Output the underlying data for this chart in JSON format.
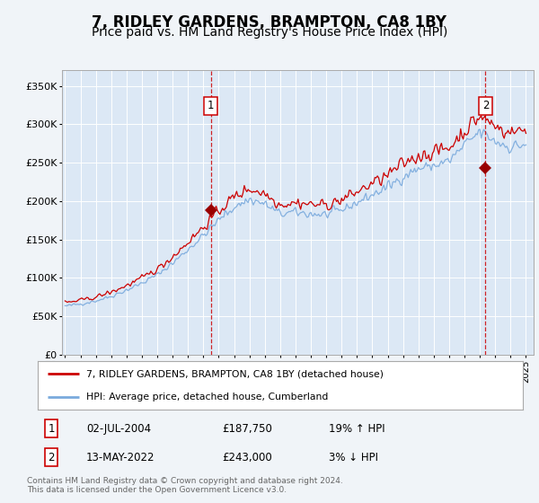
{
  "title": "7, RIDLEY GARDENS, BRAMPTON, CA8 1BY",
  "subtitle": "Price paid vs. HM Land Registry's House Price Index (HPI)",
  "title_fontsize": 12,
  "subtitle_fontsize": 10,
  "bg_color": "#f0f4f8",
  "plot_bg_color": "#dce8f5",
  "grid_color": "#ffffff",
  "legend_label_red": "7, RIDLEY GARDENS, BRAMPTON, CA8 1BY (detached house)",
  "legend_label_blue": "HPI: Average price, detached house, Cumberland",
  "footer": "Contains HM Land Registry data © Crown copyright and database right 2024.\nThis data is licensed under the Open Government Licence v3.0.",
  "sale1_date": "02-JUL-2004",
  "sale1_price": "£187,750",
  "sale1_hpi": "19% ↑ HPI",
  "sale1_x": 2004.5,
  "sale1_y": 187750,
  "sale2_date": "13-MAY-2022",
  "sale2_price": "£243,000",
  "sale2_hpi": "3% ↓ HPI",
  "sale2_x": 2022.37,
  "sale2_y": 243000,
  "ylim": [
    0,
    370000
  ],
  "xlim_left": 1994.8,
  "xlim_right": 2025.5,
  "red_color": "#cc0000",
  "blue_color": "#7aaadd",
  "marker_color": "#990000"
}
